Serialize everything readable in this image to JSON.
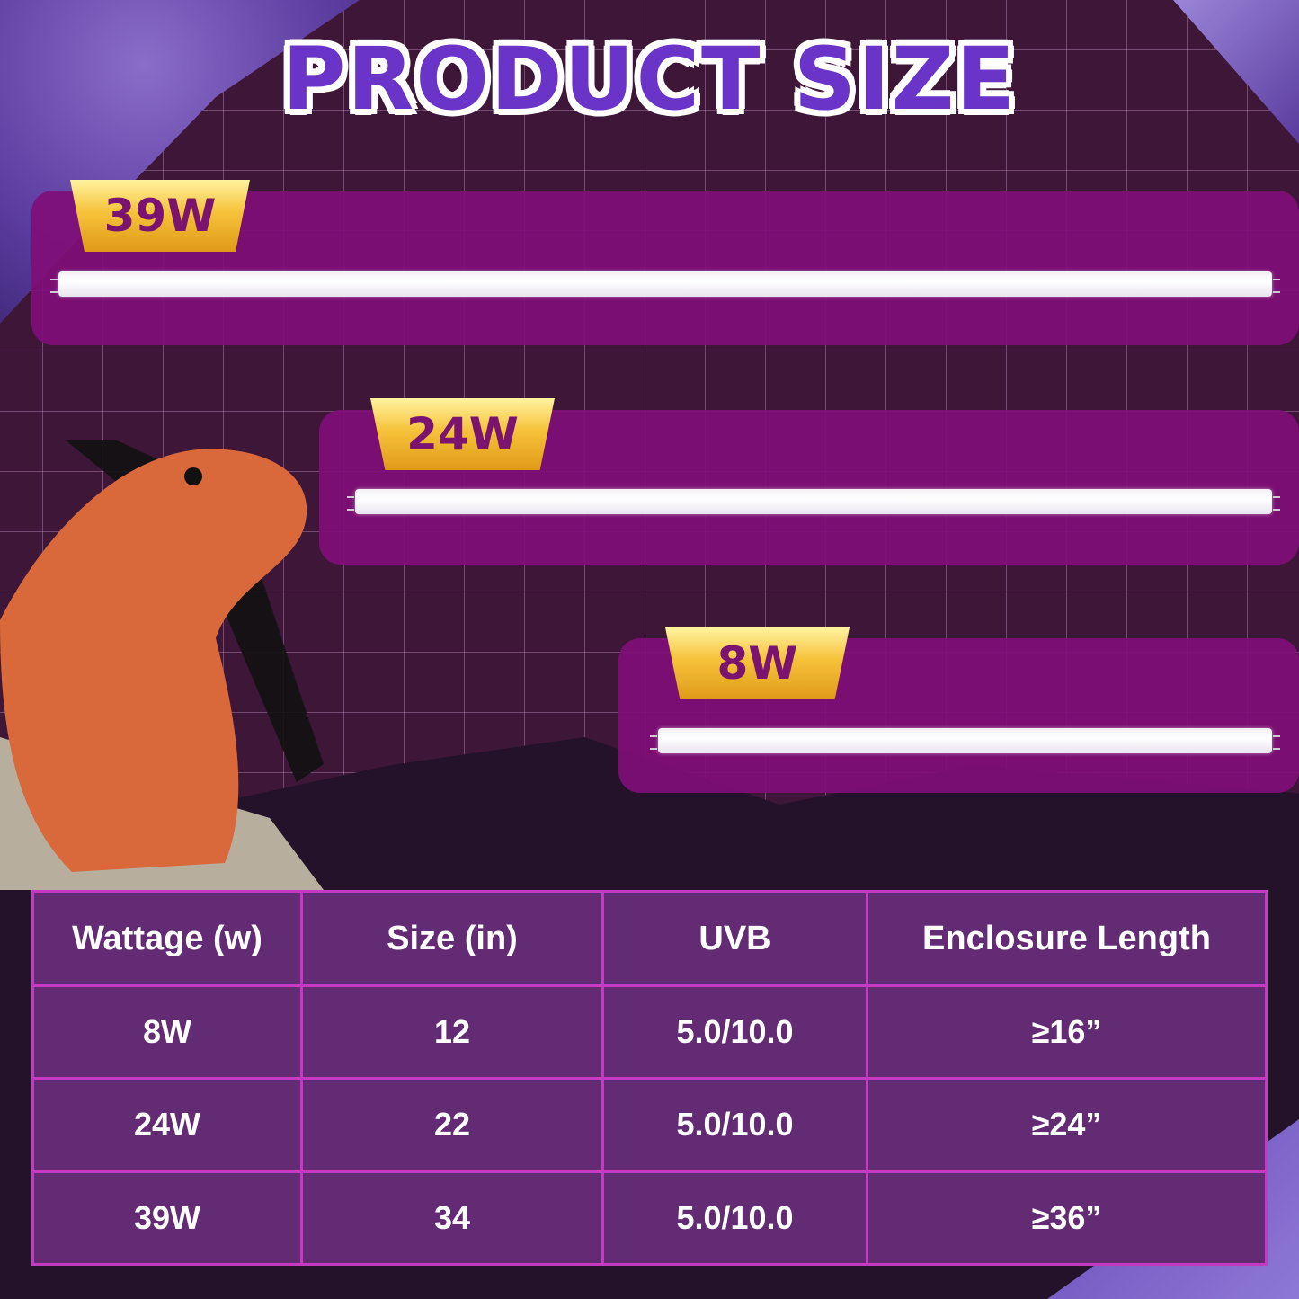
{
  "title": "PRODUCT SIZE",
  "products": [
    {
      "badge": "39W"
    },
    {
      "badge": "24W"
    },
    {
      "badge": "8W"
    }
  ],
  "table": {
    "headers": [
      "Wattage (w)",
      "Size (in)",
      "UVB",
      "Enclosure Length"
    ],
    "rows": [
      [
        "8W",
        "12",
        "5.0/10.0",
        "≥16”"
      ],
      [
        "24W",
        "22",
        "5.0/10.0",
        "≥24”"
      ],
      [
        "39W",
        "34",
        "5.0/10.0",
        "≥36”"
      ]
    ]
  },
  "colors": {
    "title": "#6a34c8",
    "panel": "#800e78",
    "badge": "#f6c23a",
    "table_bg": "#632b74",
    "table_border": "#c43ac0"
  }
}
